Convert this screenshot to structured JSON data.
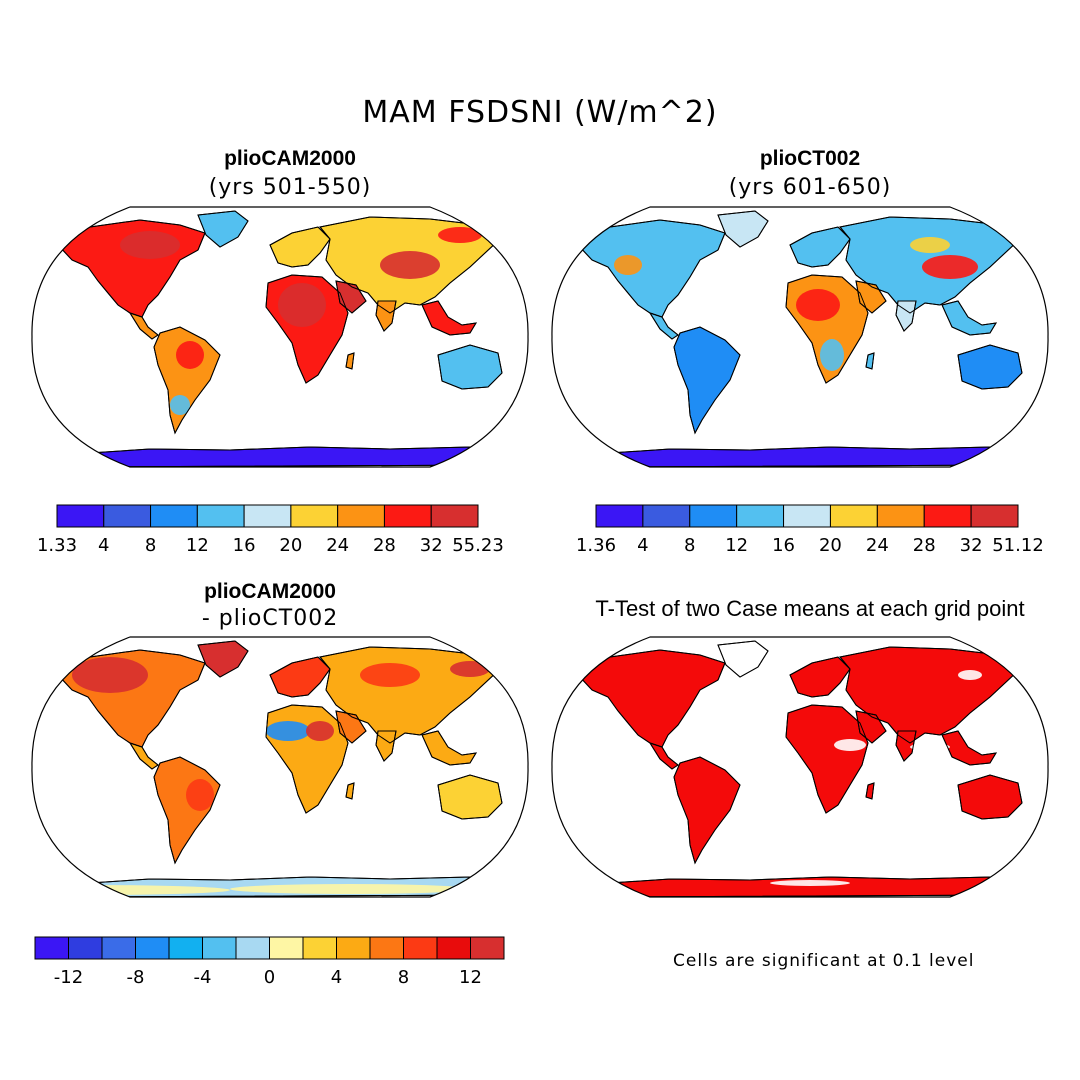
{
  "title": "MAM FSDSNI (W/m^2)",
  "panels": [
    {
      "title": "plioCAM2000",
      "subtitle": "(yrs 501-550)"
    },
    {
      "title": "plioCT002",
      "subtitle": "(yrs 601-650)"
    },
    {
      "title": "plioCAM2000",
      "subtitle": "- plioCT002"
    },
    {
      "title": "T-Test of two Case means at each grid point",
      "subtitle": ""
    }
  ],
  "colorbars": [
    {
      "colors": [
        "#3b16f5",
        "#3a5be0",
        "#1f8df5",
        "#53c0f0",
        "#c8e6f4",
        "#fcd234",
        "#fc9314",
        "#fc1a14",
        "#d72f2f"
      ],
      "labels": [
        "1.33",
        "4",
        "8",
        "12",
        "16",
        "20",
        "24",
        "28",
        "32",
        "55.23"
      ]
    },
    {
      "colors": [
        "#3b16f5",
        "#3a5be0",
        "#1f8df5",
        "#53c0f0",
        "#c8e6f4",
        "#fcd234",
        "#fc9314",
        "#fc1a14",
        "#d72f2f"
      ],
      "labels": [
        "1.36",
        "4",
        "8",
        "12",
        "16",
        "20",
        "24",
        "28",
        "32",
        "51.12"
      ]
    },
    {
      "colors": [
        "#3b16f5",
        "#2f3de0",
        "#3a6ce8",
        "#1f8df5",
        "#12b0f0",
        "#53c0f0",
        "#a8d9f2",
        "#fef6a4",
        "#fcd234",
        "#fcaa14",
        "#fc7714",
        "#fc3a14",
        "#e80c0c",
        "#d72f2f"
      ],
      "labels": [
        "-12",
        "-8",
        "-4",
        "0",
        "4",
        "8",
        "12"
      ]
    }
  ],
  "note": "Cells are significant at 0.1 level",
  "palette": {
    "ocean": "#ffffff",
    "significant": "#f40a0a",
    "outline": "#000000"
  }
}
